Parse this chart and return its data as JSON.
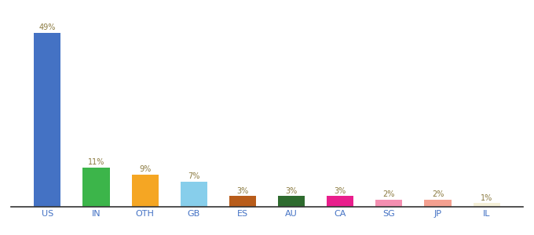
{
  "categories": [
    "US",
    "IN",
    "OTH",
    "GB",
    "ES",
    "AU",
    "CA",
    "SG",
    "JP",
    "IL"
  ],
  "values": [
    49,
    11,
    9,
    7,
    3,
    3,
    3,
    2,
    2,
    1
  ],
  "bar_colors": [
    "#4472c4",
    "#3cb54a",
    "#f5a623",
    "#87ceeb",
    "#b85c1a",
    "#2e6b2e",
    "#e91e8c",
    "#f48fb1",
    "#f4a090",
    "#f5f0d8"
  ],
  "labels": [
    "49%",
    "11%",
    "9%",
    "7%",
    "3%",
    "3%",
    "3%",
    "2%",
    "2%",
    "1%"
  ],
  "ylim": [
    0,
    55
  ],
  "background_color": "#ffffff",
  "label_color": "#8b7a40",
  "tick_color": "#4472c4",
  "bar_width": 0.55
}
